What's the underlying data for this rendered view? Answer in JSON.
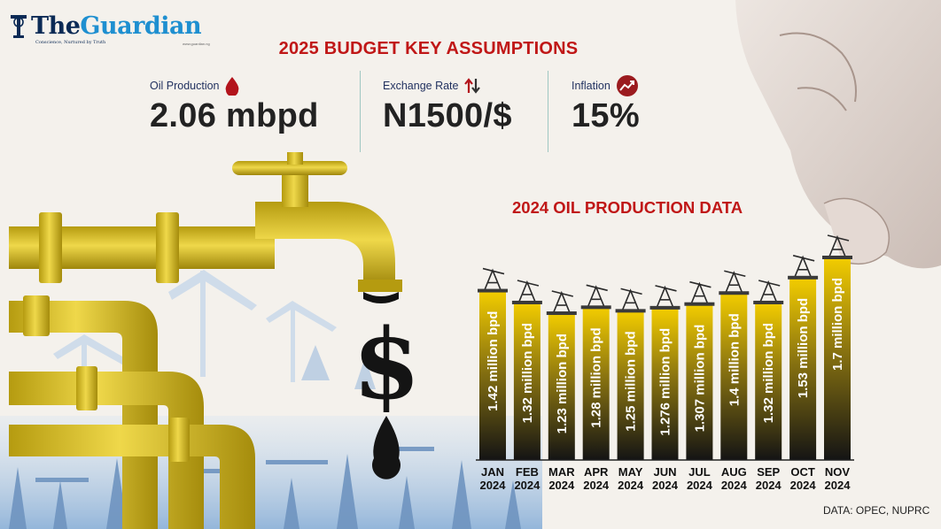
{
  "masthead": {
    "name_the": "The",
    "name_guardian": "Guardian",
    "tagline": "Conscience, Nurtured by Truth",
    "url": "www.guardian.ng"
  },
  "headline": "2025 BUDGET KEY ASSUMPTIONS",
  "assumptions": [
    {
      "label": "Oil Production",
      "value": "2.06 mbpd",
      "icon": "oil-drop-icon"
    },
    {
      "label": "Exchange Rate",
      "value": "N1500/$",
      "icon": "up-down-arrows-icon"
    },
    {
      "label": "Inflation",
      "value": "15%",
      "icon": "trend-up-icon"
    }
  ],
  "source": "DATA: OPEC, NUPRC",
  "colors": {
    "accent_red": "#c01717",
    "navy": "#1f2f5e",
    "bar_yellow": "#f2cc00",
    "bar_dark": "#141414",
    "pipe_yellow": "#d6bd1c"
  },
  "chart_data": {
    "type": "bar",
    "title": "2024 OIL PRODUCTION DATA",
    "categories": [
      "JAN 2024",
      "FEB 2024",
      "MAR 2024",
      "APR 2024",
      "MAY 2024",
      "JUN 2024",
      "JUL 2024",
      "AUG 2024",
      "SEP 2024",
      "OCT 2024",
      "NOV 2024"
    ],
    "tick_lines": [
      [
        "JAN",
        "2024"
      ],
      [
        "FEB",
        "2024"
      ],
      [
        "MAR",
        "2024"
      ],
      [
        "APR",
        "2024"
      ],
      [
        "MAY",
        "2024"
      ],
      [
        "JUN",
        "2024"
      ],
      [
        "JUL",
        "2024"
      ],
      [
        "AUG",
        "2024"
      ],
      [
        "SEP",
        "2024"
      ],
      [
        "OCT",
        "2024"
      ],
      [
        "NOV",
        "2024"
      ]
    ],
    "values": [
      1.42,
      1.32,
      1.23,
      1.28,
      1.25,
      1.276,
      1.307,
      1.4,
      1.32,
      1.53,
      1.7
    ],
    "value_labels": [
      "1.42 million bpd",
      "1.32 million bpd",
      "1.23 million bpd",
      "1.28 million bpd",
      "1.25 million bpd",
      "1.276 million bpd",
      "1.307 million bpd",
      "1.4 million bpd",
      "1.32 million bpd",
      "1.53 million bpd",
      "1.7 million bpd"
    ],
    "unit": "million bpd",
    "xlabel": "",
    "ylabel": "",
    "ylim": [
      0,
      1.7
    ],
    "grid": false,
    "legend": "none"
  }
}
